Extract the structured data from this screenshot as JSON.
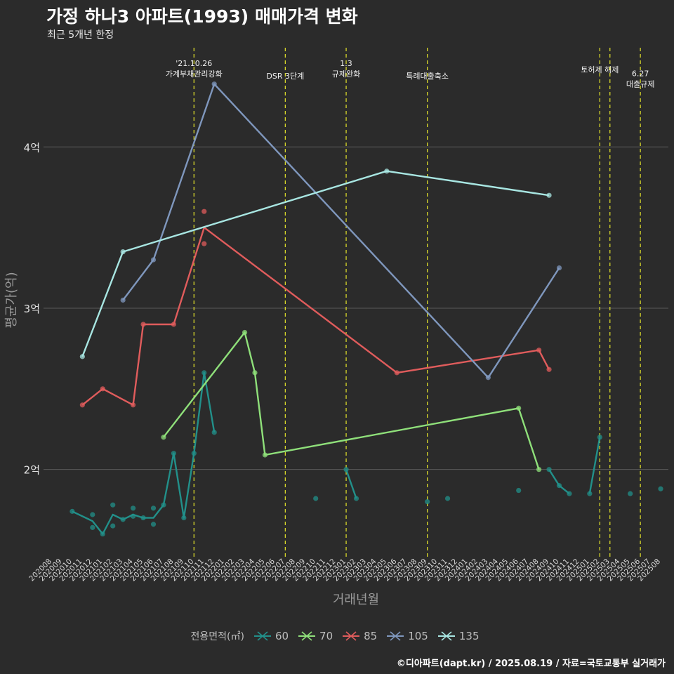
{
  "title": "가정 하나3 아파트(1993) 매매가격 변화",
  "subtitle": "최근 5개년 한정",
  "credit": "©디아파트(dapt.kr) / 2025.08.19 / 자료=국토교통부 실거래가",
  "colors": {
    "background": "#2b2b2b",
    "grid": "#5a5a5a",
    "event_line": "#d7d72a",
    "s60": "#22908a",
    "s70": "#8fe07a",
    "s85": "#e05c5c",
    "s105": "#7f97bd",
    "s135": "#a8e6e2"
  },
  "chart_data": {
    "type": "line",
    "title": "가정 하나3 아파트(1993) 매매가격 변화",
    "subtitle": "최근 5개년 한정",
    "xlabel": "거래년월",
    "ylabel": "평균가(억)",
    "ylim": [
      1.45,
      4.65
    ],
    "y_ticks": [
      2,
      3,
      4
    ],
    "y_tick_labels": [
      "2억",
      "3억",
      "4억"
    ],
    "grid": true,
    "legend_title": "전용면적(㎡)",
    "legend_position": "bottom",
    "x_categories": [
      "202008",
      "202009",
      "202010",
      "202011",
      "202012",
      "202101",
      "202102",
      "202103",
      "202104",
      "202105",
      "202106",
      "202107",
      "202108",
      "202109",
      "202110",
      "202111",
      "202112",
      "202201",
      "202202",
      "202203",
      "202204",
      "202205",
      "202206",
      "202207",
      "202208",
      "202209",
      "202210",
      "202211",
      "202212",
      "202301",
      "202302",
      "202303",
      "202304",
      "202305",
      "202306",
      "202307",
      "202308",
      "202309",
      "202310",
      "202311",
      "202312",
      "202401",
      "202402",
      "202403",
      "202404",
      "202405",
      "202406",
      "202407",
      "202408",
      "202409",
      "202410",
      "202411",
      "202412",
      "202501",
      "202502",
      "202503",
      "202504",
      "202505",
      "202506",
      "202507",
      "202508"
    ],
    "events": [
      {
        "x": 14.0,
        "label": "'21.10.26\n가계부채관리강화",
        "row": 0
      },
      {
        "x": 23.0,
        "label": "DSR 3단계",
        "row": 2
      },
      {
        "x": 29.0,
        "label": "1.3\n규제완화",
        "row": 0
      },
      {
        "x": 37.0,
        "label": "특례대출축소",
        "row": 2
      },
      {
        "x": 54.0,
        "label": "토허제 해제",
        "row": 1
      },
      {
        "x": 55.0,
        "label": "",
        "row": 1
      },
      {
        "x": 58.0,
        "label": "6.27\n대출규제",
        "row": 1.6
      }
    ],
    "series": [
      {
        "name": "60",
        "color_key": "s60",
        "line": [
          [
            2,
            1.74
          ],
          [
            4,
            1.68
          ],
          [
            5,
            1.6
          ],
          [
            6,
            1.72
          ],
          [
            7,
            1.69
          ],
          [
            8,
            1.72
          ],
          [
            9,
            1.7
          ],
          [
            10,
            1.7
          ],
          [
            11,
            1.78
          ],
          [
            12,
            2.1
          ],
          [
            13,
            1.7
          ],
          [
            14,
            2.1
          ],
          [
            15,
            2.6
          ],
          [
            16,
            2.23
          ]
        ],
        "line2": [
          [
            29,
            2.0
          ],
          [
            30,
            1.82
          ]
        ],
        "line3": [
          [
            49,
            2.0
          ],
          [
            50,
            1.9
          ],
          [
            51,
            1.85
          ]
        ],
        "line4": [
          [
            53,
            1.85
          ],
          [
            54,
            2.2
          ]
        ],
        "points": [
          [
            2,
            1.74
          ],
          [
            4,
            1.72
          ],
          [
            4,
            1.64
          ],
          [
            5,
            1.6
          ],
          [
            6,
            1.78
          ],
          [
            6,
            1.65
          ],
          [
            7,
            1.69
          ],
          [
            8,
            1.76
          ],
          [
            8,
            1.71
          ],
          [
            9,
            1.7
          ],
          [
            10,
            1.76
          ],
          [
            10,
            1.66
          ],
          [
            11,
            1.78
          ],
          [
            12,
            2.1
          ],
          [
            13,
            1.7
          ],
          [
            14,
            2.1
          ],
          [
            15,
            2.6
          ],
          [
            16,
            2.23
          ],
          [
            26,
            1.82
          ],
          [
            29,
            2.0
          ],
          [
            30,
            1.82
          ],
          [
            37,
            1.8
          ],
          [
            39,
            1.82
          ],
          [
            46,
            1.87
          ],
          [
            49,
            2.0
          ],
          [
            50,
            1.9
          ],
          [
            51,
            1.85
          ],
          [
            53,
            1.85
          ],
          [
            54,
            2.2
          ],
          [
            57,
            1.85
          ],
          [
            60,
            1.88
          ]
        ]
      },
      {
        "name": "70",
        "color_key": "s70",
        "line": [
          [
            11,
            2.2
          ],
          [
            19,
            2.85
          ],
          [
            20,
            2.6
          ],
          [
            21,
            2.09
          ],
          [
            46,
            2.38
          ],
          [
            48,
            2.0
          ]
        ],
        "points": [
          [
            11,
            2.2
          ],
          [
            19,
            2.85
          ],
          [
            20,
            2.6
          ],
          [
            21,
            2.09
          ],
          [
            46,
            2.38
          ],
          [
            48,
            2.0
          ]
        ]
      },
      {
        "name": "85",
        "color_key": "s85",
        "line": [
          [
            3,
            2.4
          ],
          [
            5,
            2.5
          ],
          [
            8,
            2.4
          ],
          [
            9,
            2.9
          ],
          [
            12,
            2.9
          ],
          [
            15,
            3.5
          ],
          [
            34,
            2.6
          ],
          [
            48,
            2.74
          ],
          [
            49,
            2.62
          ]
        ],
        "points": [
          [
            3,
            2.4
          ],
          [
            5,
            2.5
          ],
          [
            8,
            2.4
          ],
          [
            9,
            2.9
          ],
          [
            12,
            2.9
          ],
          [
            15,
            3.6
          ],
          [
            15,
            3.4
          ],
          [
            34,
            2.6
          ],
          [
            48,
            2.74
          ],
          [
            49,
            2.62
          ]
        ]
      },
      {
        "name": "105",
        "color_key": "s105",
        "line": [
          [
            7,
            3.05
          ],
          [
            10,
            3.3
          ],
          [
            16,
            4.39
          ],
          [
            43,
            2.57
          ],
          [
            50,
            3.25
          ]
        ],
        "points": [
          [
            7,
            3.05
          ],
          [
            10,
            3.3
          ],
          [
            16,
            4.39
          ],
          [
            43,
            2.57
          ],
          [
            50,
            3.25
          ]
        ]
      },
      {
        "name": "135",
        "color_key": "s135",
        "line": [
          [
            3,
            2.7
          ],
          [
            7,
            3.35
          ],
          [
            33,
            3.85
          ],
          [
            49,
            3.7
          ]
        ],
        "points": [
          [
            3,
            2.7
          ],
          [
            7,
            3.35
          ],
          [
            33,
            3.85
          ],
          [
            49,
            3.7
          ]
        ]
      }
    ]
  }
}
